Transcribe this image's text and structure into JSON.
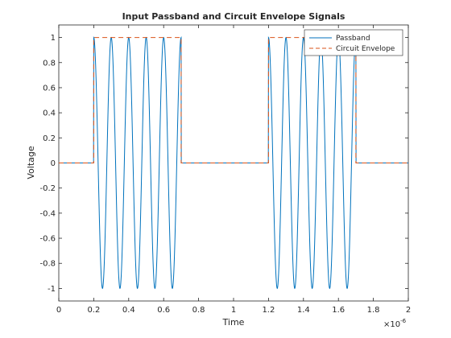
{
  "chart_data": {
    "type": "line",
    "title": "Input Passband and Circuit Envelope Signals",
    "xlabel": "Time",
    "ylabel": "Voltage",
    "x_exponent_label": "×10",
    "x_exponent_power": "-6",
    "xlim": [
      0,
      2
    ],
    "ylim": [
      -1.1,
      1.1
    ],
    "xticks": [
      "0",
      "0.2",
      "0.4",
      "0.6",
      "0.8",
      "1",
      "1.2",
      "1.4",
      "1.6",
      "1.8",
      "2"
    ],
    "yticks": [
      "-1",
      "-0.8",
      "-0.6",
      "-0.4",
      "-0.2",
      "0",
      "0.2",
      "0.4",
      "0.6",
      "0.8",
      "1"
    ],
    "legend_position": "top-right",
    "series": [
      {
        "name": "Passband",
        "color": "#0072BD",
        "style": "solid",
        "bursts": [
          [
            0.2,
            0.7
          ],
          [
            1.2,
            1.7
          ]
        ],
        "carrier_cycles_per_burst": 5,
        "amplitude": 1
      },
      {
        "name": "Circuit Envelope",
        "color": "#D95319",
        "style": "dashed",
        "x": [
          0,
          0.2,
          0.2,
          0.7,
          0.7,
          1.2,
          1.2,
          1.7,
          1.7,
          2
        ],
        "y": [
          0,
          0,
          1,
          1,
          0,
          0,
          1,
          1,
          0,
          0
        ]
      }
    ]
  }
}
